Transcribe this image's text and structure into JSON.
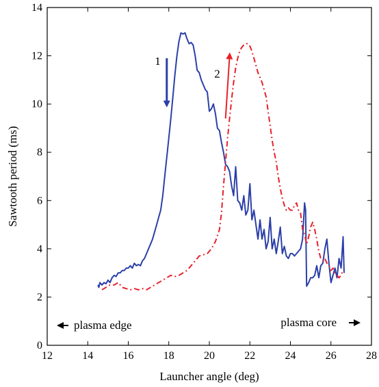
{
  "chart_data": {
    "type": "line",
    "xlabel": "Launcher angle (deg)",
    "ylabel": "Sawtooth period (ms)",
    "xlim": [
      12,
      28
    ],
    "ylim": [
      0,
      14
    ],
    "xticks": [
      12,
      14,
      16,
      18,
      20,
      22,
      24,
      26,
      28
    ],
    "yticks": [
      0,
      2,
      4,
      6,
      8,
      10,
      12,
      14
    ],
    "grid": false,
    "legend": "none",
    "series": [
      {
        "id": "1",
        "color": "#2b3fa8",
        "style": "solid",
        "x": [
          14.5,
          14.55,
          14.6,
          14.7,
          14.8,
          14.9,
          15.0,
          15.1,
          15.2,
          15.3,
          15.4,
          15.5,
          15.6,
          15.7,
          15.8,
          15.9,
          16.0,
          16.1,
          16.2,
          16.3,
          16.4,
          16.5,
          16.6,
          16.7,
          16.8,
          16.9,
          17.0,
          17.1,
          17.2,
          17.3,
          17.4,
          17.5,
          17.6,
          17.7,
          17.8,
          17.9,
          18.0,
          18.1,
          18.2,
          18.3,
          18.4,
          18.5,
          18.6,
          18.7,
          18.8,
          18.9,
          19.0,
          19.1,
          19.2,
          19.3,
          19.4,
          19.5,
          19.6,
          19.7,
          19.8,
          19.9,
          20.0,
          20.1,
          20.2,
          20.3,
          20.4,
          20.5,
          20.6,
          20.7,
          20.8,
          20.9,
          21.0,
          21.1,
          21.2,
          21.3,
          21.4,
          21.5,
          21.6,
          21.7,
          21.8,
          21.9,
          22.0,
          22.1,
          22.2,
          22.3,
          22.4,
          22.5,
          22.6,
          22.7,
          22.8,
          22.9,
          23.0,
          23.1,
          23.2,
          23.3,
          23.4,
          23.5,
          23.6,
          23.7,
          23.8,
          23.9,
          24.0,
          24.1,
          24.2,
          24.3,
          24.4,
          24.5,
          24.6,
          24.7,
          24.75,
          24.8,
          24.9,
          25.0,
          25.1,
          25.2,
          25.3,
          25.4,
          25.5,
          25.6,
          25.7,
          25.8,
          25.9,
          26.0,
          26.1,
          26.2,
          26.3,
          26.4,
          26.5,
          26.55,
          26.6,
          26.65
        ],
        "y": [
          2.5,
          2.4,
          2.6,
          2.5,
          2.6,
          2.55,
          2.7,
          2.6,
          2.8,
          2.9,
          2.85,
          3.0,
          3.0,
          3.1,
          3.1,
          3.2,
          3.2,
          3.3,
          3.2,
          3.4,
          3.3,
          3.35,
          3.3,
          3.5,
          3.6,
          3.8,
          4.0,
          4.2,
          4.4,
          4.7,
          5.0,
          5.3,
          5.6,
          6.2,
          7.0,
          7.8,
          8.6,
          9.4,
          10.3,
          11.2,
          12.0,
          12.6,
          12.95,
          12.9,
          12.95,
          12.7,
          12.5,
          12.55,
          12.45,
          12.0,
          11.4,
          11.3,
          11.0,
          10.8,
          10.6,
          10.5,
          9.7,
          9.8,
          10.0,
          9.6,
          9.0,
          8.9,
          8.4,
          8.0,
          7.5,
          7.4,
          7.2,
          6.6,
          6.2,
          7.4,
          6.0,
          5.9,
          5.6,
          6.2,
          5.4,
          5.6,
          6.7,
          5.2,
          5.6,
          5.0,
          4.4,
          5.2,
          4.4,
          4.8,
          4.0,
          4.3,
          5.3,
          4.0,
          4.4,
          3.8,
          4.3,
          4.9,
          3.8,
          4.1,
          3.7,
          3.6,
          3.8,
          3.8,
          3.7,
          3.8,
          3.9,
          4.0,
          4.4,
          5.9,
          5.6,
          2.45,
          2.6,
          2.8,
          2.8,
          2.9,
          3.3,
          2.8,
          3.3,
          3.4,
          4.0,
          4.4,
          3.4,
          2.6,
          2.9,
          3.2,
          2.8,
          3.6,
          3.2,
          3.8,
          4.5,
          3.0
        ],
        "annotation": {
          "label": "1",
          "direction": "down",
          "x": 17.9,
          "y_from": 11.9,
          "y_to": 10.0
        }
      },
      {
        "id": "2",
        "color": "#e8202a",
        "style": "dash-dot",
        "x": [
          14.7,
          14.9,
          15.1,
          15.3,
          15.5,
          15.7,
          15.9,
          16.1,
          16.3,
          16.5,
          16.7,
          16.9,
          17.1,
          17.3,
          17.5,
          17.7,
          17.9,
          18.1,
          18.3,
          18.5,
          18.7,
          18.9,
          19.1,
          19.3,
          19.5,
          19.7,
          19.9,
          20.1,
          20.3,
          20.5,
          20.6,
          20.7,
          20.8,
          20.9,
          21.0,
          21.1,
          21.2,
          21.3,
          21.4,
          21.5,
          21.6,
          21.7,
          21.8,
          21.9,
          22.0,
          22.1,
          22.2,
          22.3,
          22.4,
          22.5,
          22.6,
          22.7,
          22.8,
          22.9,
          23.0,
          23.1,
          23.2,
          23.3,
          23.4,
          23.5,
          23.6,
          23.7,
          23.8,
          23.9,
          24.0,
          24.1,
          24.2,
          24.3,
          24.4,
          24.5,
          24.6,
          24.7,
          24.8,
          24.9,
          25.0,
          25.1,
          25.2,
          25.3,
          25.4,
          25.5,
          25.6,
          25.7,
          25.8,
          25.9,
          26.0,
          26.1,
          26.2,
          26.3,
          26.4,
          26.5,
          26.6
        ],
        "y": [
          2.3,
          2.4,
          2.5,
          2.5,
          2.6,
          2.4,
          2.35,
          2.3,
          2.35,
          2.3,
          2.35,
          2.3,
          2.4,
          2.5,
          2.6,
          2.7,
          2.8,
          2.9,
          2.85,
          2.9,
          3.0,
          3.1,
          3.3,
          3.5,
          3.7,
          3.75,
          3.8,
          4.0,
          4.3,
          4.8,
          5.5,
          6.6,
          7.6,
          8.6,
          9.4,
          10.2,
          10.9,
          11.5,
          11.9,
          12.2,
          12.35,
          12.45,
          12.5,
          12.5,
          12.4,
          12.2,
          11.9,
          11.6,
          11.3,
          11.1,
          10.9,
          10.6,
          10.3,
          9.7,
          9.1,
          8.5,
          8.0,
          7.6,
          7.0,
          6.5,
          6.1,
          5.8,
          5.6,
          5.7,
          5.6,
          5.6,
          5.8,
          5.9,
          5.6,
          5.5,
          4.8,
          4.6,
          4.2,
          4.5,
          4.9,
          5.1,
          4.8,
          4.4,
          3.9,
          3.6,
          3.5,
          3.6,
          3.4,
          3.3,
          3.1,
          3.2,
          3.0,
          2.9,
          2.8,
          2.9,
          3.1
        ],
        "annotation": {
          "label": "2",
          "direction": "up",
          "x_from": 20.8,
          "y_from": 9.4,
          "x_to": 21.0,
          "y_to": 12.0
        }
      }
    ],
    "annotations": [
      {
        "text": "plasma edge",
        "arrow": "left"
      },
      {
        "text": "plasma core",
        "arrow": "right"
      }
    ]
  }
}
